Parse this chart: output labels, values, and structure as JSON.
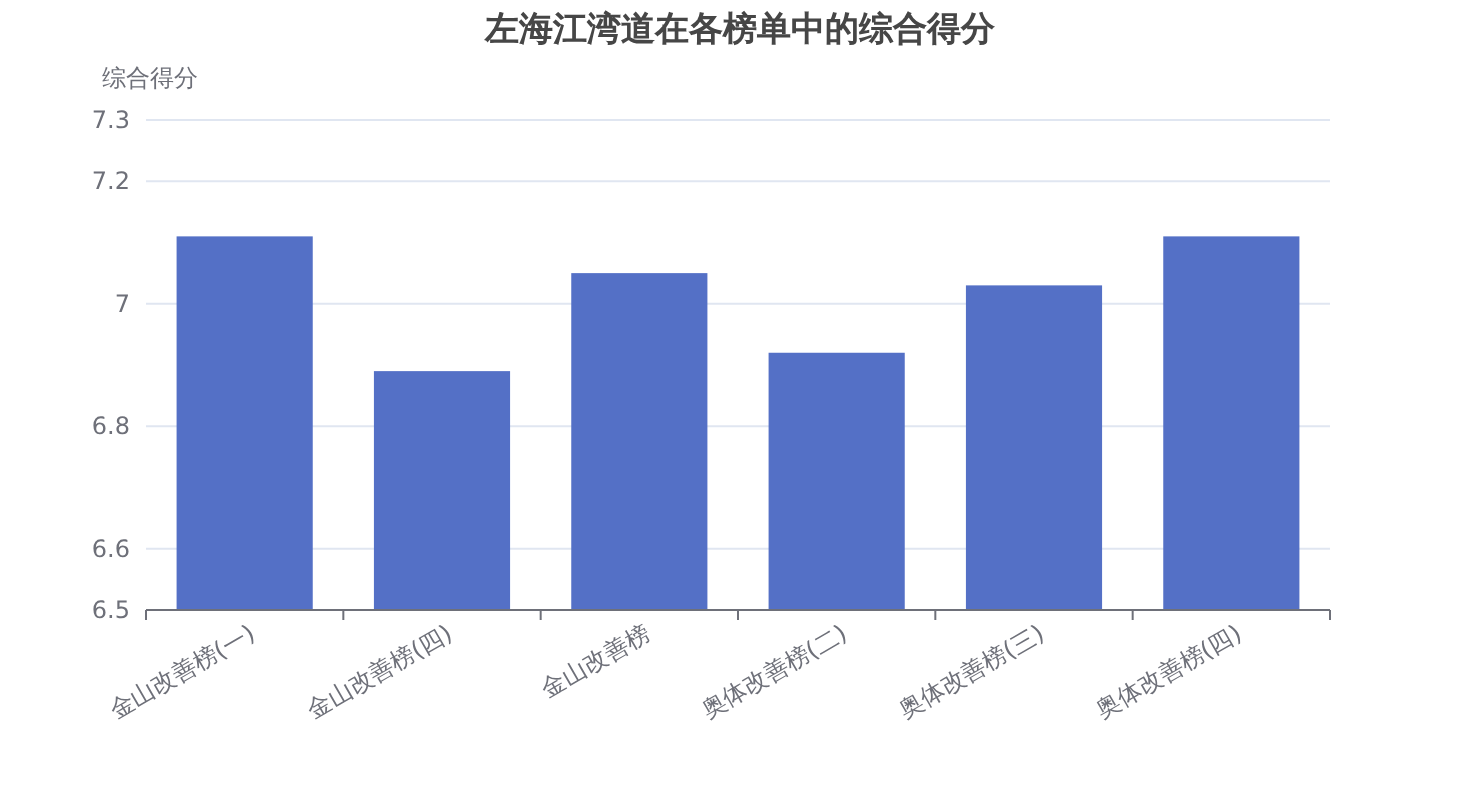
{
  "chart_data": {
    "type": "bar",
    "title": "左海江湾道在各榜单中的综合得分",
    "ylabel": "综合得分",
    "categories": [
      "金山改善榜(一)",
      "金山改善榜(四)",
      "金山改善榜",
      "奥体改善榜(二)",
      "奥体改善榜(三)",
      "奥体改善榜(四)"
    ],
    "values": [
      7.11,
      6.89,
      7.05,
      6.92,
      7.03,
      7.11
    ],
    "color": "#5470c6",
    "ylim": [
      6.5,
      7.3
    ],
    "yticks": [
      6.5,
      6.6,
      6.8,
      7,
      7.2,
      7.3
    ],
    "grid": "y"
  }
}
